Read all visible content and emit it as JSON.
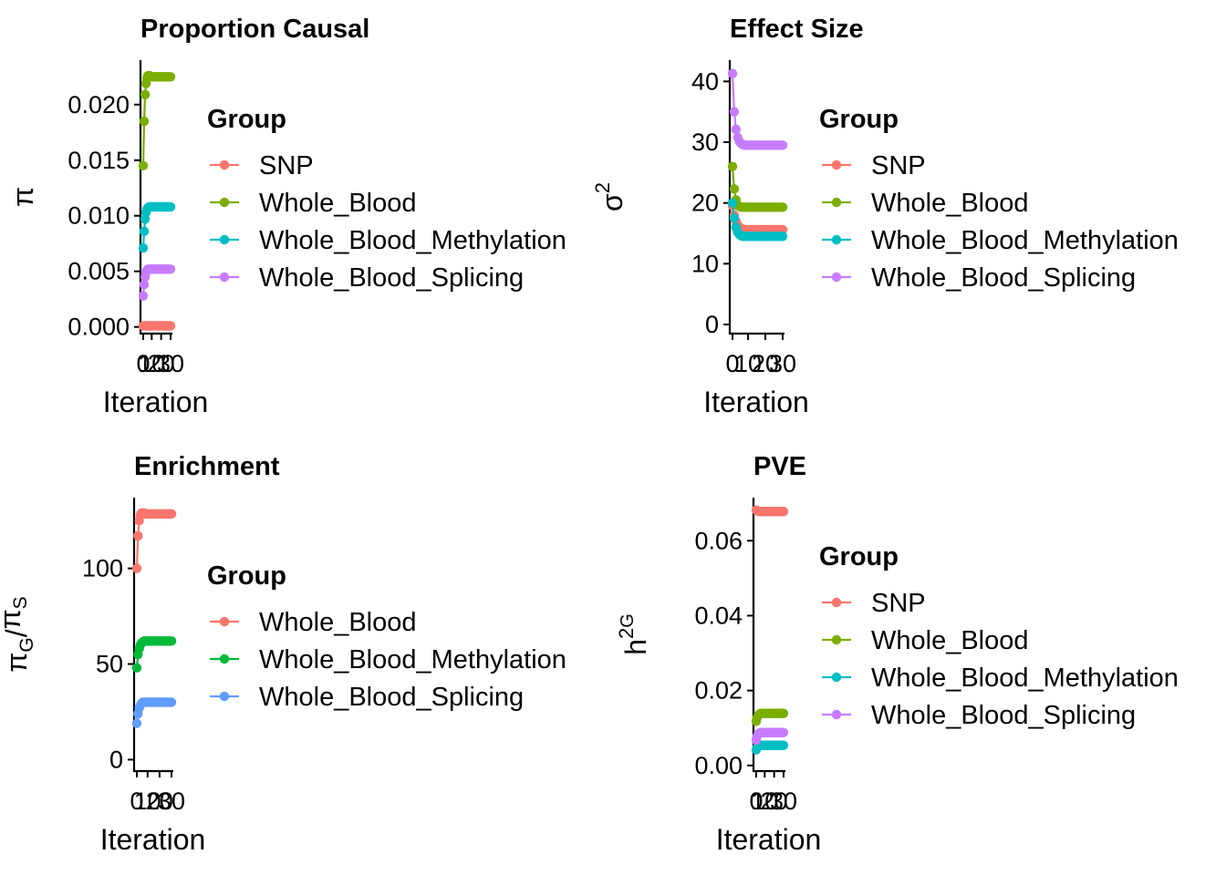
{
  "colors": {
    "SNP": "#F8766D",
    "Whole_Blood": "#7CAE00",
    "Whole_Blood_Methylation": "#00BFC4",
    "Whole_Blood_Splicing": "#C77CFF",
    "enrich_Whole_Blood": "#F8766D",
    "enrich_Whole_Blood_Methylation": "#00BA38",
    "enrich_Whole_Blood_Splicing": "#619CFF"
  },
  "chart_data": [
    {
      "id": "proportion-causal",
      "type": "line",
      "title": "Proportion Causal",
      "xlabel": "Iteration",
      "ylabel": "π",
      "xlim": [
        1,
        30
      ],
      "ylim": [
        -0.0006,
        0.024
      ],
      "yticks": [
        0.0,
        0.005,
        0.01,
        0.015,
        0.02
      ],
      "ytick_labels": [
        "0.000",
        "0.005",
        "0.010",
        "0.015",
        "0.020"
      ],
      "xticks": [
        1,
        10,
        20,
        30
      ],
      "xtick_labels": [
        "0",
        "10",
        "20",
        "30"
      ],
      "legend_title": "Group",
      "legend_position": "right",
      "grid": false,
      "series": [
        {
          "name": "SNP",
          "color_key": "SNP",
          "values": [
            0.0001,
            0.0001,
            0.0001,
            0.0001,
            0.0001,
            0.0001,
            0.0001,
            0.0001,
            0.0001,
            0.0001,
            0.0001,
            0.0001,
            0.0001,
            0.0001,
            0.0001,
            0.0001,
            0.0001,
            0.0001,
            0.0001,
            0.0001,
            0.0001,
            0.0001,
            0.0001,
            0.0001,
            0.0001,
            0.0001,
            0.0001,
            0.0001,
            0.0001,
            0.0001
          ]
        },
        {
          "name": "Whole_Blood",
          "color_key": "Whole_Blood",
          "values": [
            0.0145,
            0.0185,
            0.0209,
            0.0219,
            0.0224,
            0.0226,
            0.0226,
            0.0226,
            0.0225,
            0.0225,
            0.0225,
            0.0225,
            0.0225,
            0.0225,
            0.0225,
            0.0225,
            0.0225,
            0.0225,
            0.0225,
            0.0225,
            0.0225,
            0.0225,
            0.0225,
            0.0225,
            0.0225,
            0.0225,
            0.0225,
            0.0225,
            0.0225,
            0.0225
          ]
        },
        {
          "name": "Whole_Blood_Methylation",
          "color_key": "Whole_Blood_Methylation",
          "values": [
            0.0071,
            0.0086,
            0.0097,
            0.0103,
            0.0106,
            0.0107,
            0.0108,
            0.0108,
            0.0108,
            0.0108,
            0.0108,
            0.0108,
            0.0108,
            0.0108,
            0.0108,
            0.0108,
            0.0108,
            0.0108,
            0.0108,
            0.0108,
            0.0108,
            0.0108,
            0.0108,
            0.0108,
            0.0108,
            0.0108,
            0.0108,
            0.0108,
            0.0108,
            0.0108
          ]
        },
        {
          "name": "Whole_Blood_Splicing",
          "color_key": "Whole_Blood_Splicing",
          "values": [
            0.0028,
            0.0038,
            0.0045,
            0.0049,
            0.0051,
            0.0052,
            0.0052,
            0.0052,
            0.0052,
            0.0052,
            0.0052,
            0.0052,
            0.0052,
            0.0052,
            0.0052,
            0.0052,
            0.0052,
            0.0052,
            0.0052,
            0.0052,
            0.0052,
            0.0052,
            0.0052,
            0.0052,
            0.0052,
            0.0052,
            0.0052,
            0.0052,
            0.0052,
            0.0052
          ]
        }
      ]
    },
    {
      "id": "effect-size",
      "type": "line",
      "title": "Effect Size",
      "xlabel": "Iteration",
      "ylabel": "σ",
      "ylabel_sup": "2",
      "xlim": [
        1,
        30
      ],
      "ylim": [
        -1.5,
        43.5
      ],
      "yticks": [
        0,
        10,
        20,
        30,
        40
      ],
      "ytick_labels": [
        "0",
        "10",
        "20",
        "30",
        "40"
      ],
      "xticks": [
        1,
        10,
        20,
        30
      ],
      "xtick_labels": [
        "0",
        "10",
        "20",
        "30"
      ],
      "legend_title": "Group",
      "legend_position": "right",
      "grid": false,
      "series": [
        {
          "name": "SNP",
          "color_key": "SNP",
          "values": [
            19.5,
            18.0,
            17.0,
            16.4,
            16.0,
            15.8,
            15.7,
            15.6,
            15.6,
            15.6,
            15.6,
            15.6,
            15.6,
            15.6,
            15.6,
            15.6,
            15.6,
            15.6,
            15.6,
            15.6,
            15.6,
            15.6,
            15.6,
            15.6,
            15.6,
            15.6,
            15.6,
            15.6,
            15.6,
            15.6
          ]
        },
        {
          "name": "Whole_Blood",
          "color_key": "Whole_Blood",
          "values": [
            26.0,
            22.3,
            20.5,
            19.7,
            19.4,
            19.3,
            19.3,
            19.3,
            19.3,
            19.3,
            19.3,
            19.3,
            19.3,
            19.3,
            19.3,
            19.3,
            19.3,
            19.3,
            19.3,
            19.3,
            19.3,
            19.3,
            19.3,
            19.3,
            19.3,
            19.3,
            19.3,
            19.3,
            19.3,
            19.3
          ]
        },
        {
          "name": "Whole_Blood_Methylation",
          "color_key": "Whole_Blood_Methylation",
          "values": [
            20.0,
            17.5,
            16.0,
            15.2,
            14.8,
            14.6,
            14.5,
            14.5,
            14.5,
            14.5,
            14.5,
            14.5,
            14.5,
            14.5,
            14.5,
            14.5,
            14.5,
            14.5,
            14.5,
            14.5,
            14.5,
            14.5,
            14.5,
            14.5,
            14.5,
            14.5,
            14.5,
            14.5,
            14.5,
            14.5
          ]
        },
        {
          "name": "Whole_Blood_Splicing",
          "color_key": "Whole_Blood_Splicing",
          "values": [
            41.3,
            35.0,
            32.1,
            30.8,
            30.1,
            29.8,
            29.6,
            29.5,
            29.5,
            29.5,
            29.5,
            29.5,
            29.5,
            29.5,
            29.5,
            29.5,
            29.5,
            29.5,
            29.5,
            29.5,
            29.5,
            29.5,
            29.5,
            29.5,
            29.5,
            29.5,
            29.5,
            29.5,
            29.5,
            29.5
          ]
        }
      ]
    },
    {
      "id": "enrichment",
      "type": "line",
      "title": "Enrichment",
      "xlabel": "Iteration",
      "ylabel": "πG/πS",
      "xlim": [
        1,
        30
      ],
      "ylim": [
        -6,
        137
      ],
      "yticks": [
        0,
        50,
        100
      ],
      "ytick_labels": [
        "0",
        "50",
        "100"
      ],
      "xticks": [
        1,
        10,
        20,
        30
      ],
      "xtick_labels": [
        "0",
        "10",
        "20",
        "30"
      ],
      "legend_title": "Group",
      "legend_position": "right",
      "grid": false,
      "series": [
        {
          "name": "Whole_Blood",
          "color_key": "enrich_Whole_Blood",
          "values": [
            100,
            117,
            125,
            128,
            129,
            129,
            129,
            128.5,
            128.5,
            128.5,
            128.5,
            128.5,
            128.5,
            128.5,
            128.5,
            128.5,
            128.5,
            128.5,
            128.5,
            128.5,
            128.5,
            128.5,
            128.5,
            128.5,
            128.5,
            128.5,
            128.5,
            128.5,
            128.5,
            128.5
          ]
        },
        {
          "name": "Whole_Blood_Methylation",
          "color_key": "enrich_Whole_Blood_Methylation",
          "values": [
            48,
            55,
            58,
            60,
            61,
            61.5,
            62,
            62,
            62,
            62,
            62,
            62,
            62,
            62,
            62,
            62,
            62,
            62,
            62,
            62,
            62,
            62,
            62,
            62,
            62,
            62,
            62,
            62,
            62,
            62
          ]
        },
        {
          "name": "Whole_Blood_Splicing",
          "color_key": "enrich_Whole_Blood_Splicing",
          "values": [
            19,
            24,
            27,
            28.5,
            29.5,
            30,
            30,
            30,
            30,
            30,
            30,
            30,
            30,
            30,
            30,
            30,
            30,
            30,
            30,
            30,
            30,
            30,
            30,
            30,
            30,
            30,
            30,
            30,
            30,
            30
          ]
        }
      ]
    },
    {
      "id": "pve",
      "type": "line",
      "title": "PVE",
      "xlabel": "Iteration",
      "ylabel": "h",
      "ylabel_sup": "2",
      "ylabel_sub": "G",
      "xlim": [
        1,
        30
      ],
      "ylim": [
        -0.0015,
        0.0715
      ],
      "yticks": [
        0.0,
        0.02,
        0.04,
        0.06
      ],
      "ytick_labels": [
        "0.00",
        "0.02",
        "0.04",
        "0.06"
      ],
      "xticks": [
        1,
        10,
        20,
        30
      ],
      "xtick_labels": [
        "0",
        "10",
        "20",
        "30"
      ],
      "legend_title": "Group",
      "legend_position": "right",
      "grid": false,
      "series": [
        {
          "name": "SNP",
          "color_key": "SNP",
          "values": [
            0.0682,
            0.068,
            0.0679,
            0.0678,
            0.0678,
            0.0678,
            0.0678,
            0.0678,
            0.0678,
            0.0678,
            0.0678,
            0.0678,
            0.0678,
            0.0678,
            0.0678,
            0.0678,
            0.0678,
            0.0678,
            0.0678,
            0.0678,
            0.0678,
            0.0678,
            0.0678,
            0.0678,
            0.0678,
            0.0678,
            0.0678,
            0.0678,
            0.0678,
            0.0678
          ]
        },
        {
          "name": "Whole_Blood",
          "color_key": "Whole_Blood",
          "values": [
            0.0118,
            0.0128,
            0.0133,
            0.0136,
            0.0138,
            0.0139,
            0.0139,
            0.0139,
            0.0139,
            0.0139,
            0.0139,
            0.0139,
            0.0139,
            0.0139,
            0.0139,
            0.0139,
            0.0139,
            0.0139,
            0.0139,
            0.0139,
            0.0139,
            0.0139,
            0.0139,
            0.0139,
            0.0139,
            0.0139,
            0.0139,
            0.0139,
            0.0139,
            0.0139
          ]
        },
        {
          "name": "Whole_Blood_Methylation",
          "color_key": "Whole_Blood_Methylation",
          "values": [
            0.0042,
            0.0048,
            0.0051,
            0.0053,
            0.0054,
            0.0054,
            0.0054,
            0.0054,
            0.0054,
            0.0054,
            0.0054,
            0.0054,
            0.0054,
            0.0054,
            0.0054,
            0.0054,
            0.0054,
            0.0054,
            0.0054,
            0.0054,
            0.0054,
            0.0054,
            0.0054,
            0.0054,
            0.0054,
            0.0054,
            0.0054,
            0.0054,
            0.0054,
            0.0054
          ]
        },
        {
          "name": "Whole_Blood_Splicing",
          "color_key": "Whole_Blood_Splicing",
          "values": [
            0.0068,
            0.0078,
            0.0083,
            0.0086,
            0.0087,
            0.0088,
            0.0088,
            0.0088,
            0.0088,
            0.0088,
            0.0088,
            0.0088,
            0.0088,
            0.0088,
            0.0088,
            0.0088,
            0.0088,
            0.0088,
            0.0088,
            0.0088,
            0.0088,
            0.0088,
            0.0088,
            0.0088,
            0.0088,
            0.0088,
            0.0088,
            0.0088,
            0.0088,
            0.0088
          ]
        }
      ]
    }
  ]
}
